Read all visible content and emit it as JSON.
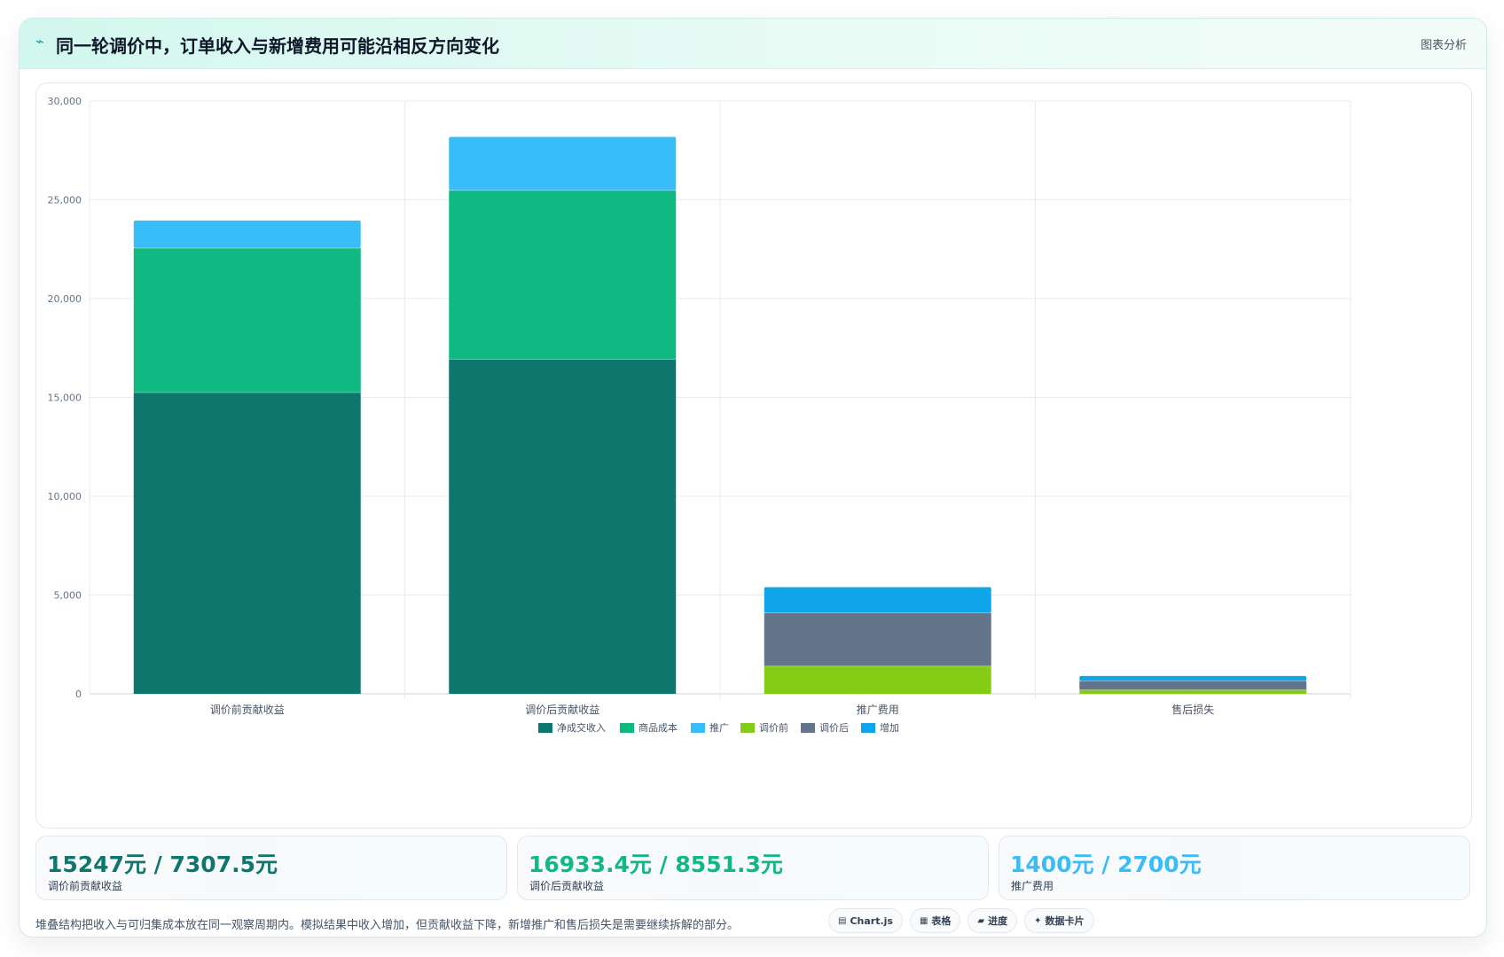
{
  "header": {
    "icon": "trend-icon",
    "title": "同一轮调价中，订单收入与新增费用可能沿相反方向变化",
    "right_label": "图表分析"
  },
  "chart_data": {
    "type": "bar",
    "stacked": true,
    "categories": [
      "调价前贡献收益",
      "调价后贡献收益",
      "推广费用",
      "售后损失"
    ],
    "series": [
      {
        "name": "净成交收入",
        "color": "#0f766e",
        "values": [
          15247,
          16933.4,
          0,
          0
        ]
      },
      {
        "name": "商品成本",
        "color": "#10b981",
        "values": [
          7307.5,
          8551.3,
          0,
          0
        ]
      },
      {
        "name": "推广",
        "color": "#38bdf8",
        "values": [
          1400,
          2700,
          0,
          0
        ]
      },
      {
        "name": "调价前",
        "color": "#84cc16",
        "values": [
          0,
          0,
          1400,
          200
        ]
      },
      {
        "name": "调价后",
        "color": "#64748b",
        "values": [
          0,
          0,
          2700,
          450
        ]
      },
      {
        "name": "增加",
        "color": "#0ea5e9",
        "values": [
          0,
          0,
          1300,
          250
        ]
      }
    ],
    "ylim": [
      0,
      30000
    ],
    "yticks": [
      0,
      5000,
      10000,
      15000,
      20000,
      25000,
      30000
    ],
    "ytick_labels": [
      "0",
      "5,000",
      "10,000",
      "15,000",
      "20,000",
      "25,000",
      "30,000"
    ],
    "grid": true,
    "legend_position": "bottom"
  },
  "stats": [
    {
      "value": "15247元 / 7307.5元",
      "label": "调价前贡献收益",
      "color": "#0f766e"
    },
    {
      "value": "16933.4元 / 8551.3元",
      "label": "调价后贡献收益",
      "color": "#10b981"
    },
    {
      "value": "1400元 / 2700元",
      "label": "推广费用",
      "color": "#38bdf8"
    }
  ],
  "note": "堆叠结构把收入与可归集成本放在同一观察周期内。模拟结果中收入增加，但贡献收益下降，新增推广和售后损失是需要继续拆解的部分。",
  "tags": [
    {
      "icon": "▤",
      "label": "Chart.js"
    },
    {
      "icon": "▦",
      "label": "表格"
    },
    {
      "icon": "▰",
      "label": "进度"
    },
    {
      "icon": "✦",
      "label": "数据卡片"
    }
  ]
}
